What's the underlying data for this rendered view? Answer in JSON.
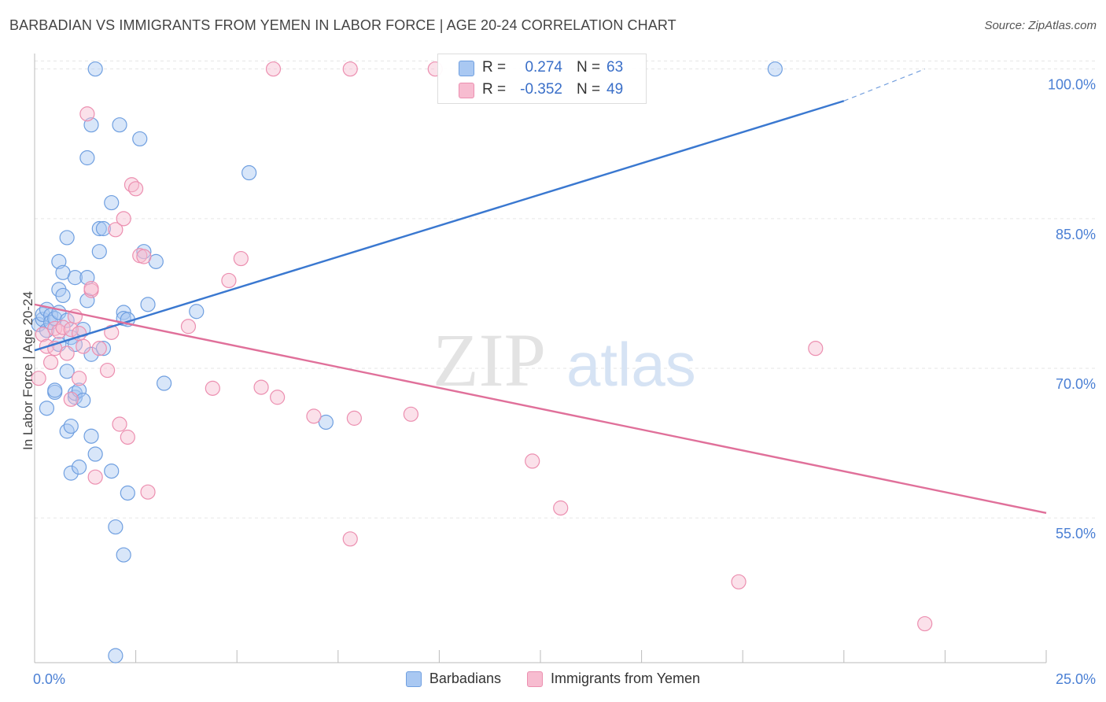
{
  "header": {
    "title": "BARBADIAN VS IMMIGRANTS FROM YEMEN IN LABOR FORCE | AGE 20-24 CORRELATION CHART",
    "source": "Source: ZipAtlas.com"
  },
  "watermark": {
    "zip": "ZIP",
    "atlas": "atlas"
  },
  "stats": [
    {
      "r_label": "R =",
      "r_value": "0.274",
      "n_label": "N =",
      "n_value": "63",
      "color": "#a9c8f2",
      "border": "#6f9fe0"
    },
    {
      "r_label": "R =",
      "r_value": "-0.352",
      "n_label": "N =",
      "n_value": "49",
      "color": "#f7bcd0",
      "border": "#ec8fb0"
    }
  ],
  "legend": [
    {
      "label": "Barbadians",
      "color": "#a9c8f2",
      "border": "#6f9fe0"
    },
    {
      "label": "Immigrants from Yemen",
      "color": "#f7bcd0",
      "border": "#ec8fb0"
    }
  ],
  "chart_data": {
    "type": "scatter",
    "title": "BARBADIAN VS IMMIGRANTS FROM YEMEN IN LABOR FORCE | AGE 20-24 CORRELATION CHART",
    "xlabel": "",
    "ylabel": "In Labor Force | Age 20-24",
    "xlim": [
      0,
      25
    ],
    "ylim": [
      40.5,
      101
    ],
    "x_tick_labels": [
      "0.0%",
      "25.0%"
    ],
    "y_ticks": [
      55,
      70,
      85,
      100
    ],
    "y_tick_labels": [
      "55.0%",
      "70.0%",
      "85.0%",
      "100.0%"
    ],
    "grid": true,
    "legend_position": "bottom",
    "series": [
      {
        "name": "Barbadians",
        "color": "#6f9fe0",
        "fill": "#a9c8f2",
        "line_color": "#3a78d0",
        "trend": {
          "x0": 0.0,
          "y0": 71.8,
          "x1": 20.0,
          "y1": 96.8,
          "dashed_to_x": 22.0,
          "dashed_to_y": 100.0
        },
        "points": [
          [
            0.1,
            74.4
          ],
          [
            0.2,
            74.9
          ],
          [
            0.2,
            75.4
          ],
          [
            0.3,
            73.8
          ],
          [
            0.3,
            75.9
          ],
          [
            0.3,
            66.0
          ],
          [
            0.4,
            75.3
          ],
          [
            0.4,
            74.6
          ],
          [
            0.5,
            75.0
          ],
          [
            0.5,
            67.6
          ],
          [
            0.5,
            67.8
          ],
          [
            0.6,
            72.4
          ],
          [
            0.6,
            75.6
          ],
          [
            0.6,
            77.9
          ],
          [
            0.6,
            80.7
          ],
          [
            0.7,
            77.3
          ],
          [
            0.7,
            79.6
          ],
          [
            0.8,
            69.7
          ],
          [
            0.8,
            63.7
          ],
          [
            0.8,
            83.1
          ],
          [
            0.9,
            64.2
          ],
          [
            0.9,
            73.1
          ],
          [
            0.9,
            59.5
          ],
          [
            1.0,
            79.1
          ],
          [
            1.0,
            67.1
          ],
          [
            1.0,
            67.5
          ],
          [
            1.1,
            60.1
          ],
          [
            1.1,
            67.8
          ],
          [
            1.2,
            66.8
          ],
          [
            1.3,
            76.8
          ],
          [
            1.3,
            91.1
          ],
          [
            1.3,
            79.1
          ],
          [
            1.4,
            63.2
          ],
          [
            1.4,
            71.4
          ],
          [
            1.4,
            94.4
          ],
          [
            1.5,
            100.0
          ],
          [
            1.5,
            61.4
          ],
          [
            1.6,
            81.7
          ],
          [
            1.6,
            84.0
          ],
          [
            1.7,
            84.0
          ],
          [
            1.7,
            72.0
          ],
          [
            1.9,
            59.7
          ],
          [
            1.9,
            86.6
          ],
          [
            2.0,
            54.1
          ],
          [
            2.0,
            41.2
          ],
          [
            2.1,
            94.4
          ],
          [
            2.2,
            75.6
          ],
          [
            2.2,
            75.0
          ],
          [
            2.2,
            51.3
          ],
          [
            2.3,
            57.5
          ],
          [
            2.6,
            93.0
          ],
          [
            2.7,
            81.7
          ],
          [
            2.8,
            76.4
          ],
          [
            3.0,
            80.7
          ],
          [
            3.2,
            68.5
          ],
          [
            4.0,
            75.7
          ],
          [
            5.3,
            89.6
          ],
          [
            7.2,
            64.6
          ],
          [
            18.3,
            100.0
          ],
          [
            1.0,
            72.4
          ],
          [
            0.8,
            74.8
          ],
          [
            1.2,
            73.9
          ],
          [
            2.3,
            74.9
          ]
        ]
      },
      {
        "name": "Immigrants from Yemen",
        "color": "#ec8fb0",
        "fill": "#f7bcd0",
        "line_color": "#e0709a",
        "trend": {
          "x0": 0.0,
          "y0": 76.4,
          "x1": 25.0,
          "y1": 55.5
        },
        "points": [
          [
            0.1,
            69.0
          ],
          [
            0.2,
            73.4
          ],
          [
            0.3,
            72.2
          ],
          [
            0.4,
            70.6
          ],
          [
            0.5,
            74.0
          ],
          [
            0.5,
            72.0
          ],
          [
            0.6,
            73.7
          ],
          [
            0.7,
            74.1
          ],
          [
            0.8,
            71.5
          ],
          [
            0.9,
            73.9
          ],
          [
            0.9,
            66.9
          ],
          [
            1.0,
            75.2
          ],
          [
            1.1,
            69.0
          ],
          [
            1.2,
            72.2
          ],
          [
            1.3,
            95.5
          ],
          [
            1.4,
            77.8
          ],
          [
            1.4,
            78.0
          ],
          [
            1.5,
            59.1
          ],
          [
            1.6,
            72.0
          ],
          [
            1.8,
            69.8
          ],
          [
            1.9,
            73.6
          ],
          [
            2.0,
            83.9
          ],
          [
            2.1,
            64.4
          ],
          [
            2.2,
            85.0
          ],
          [
            2.3,
            63.1
          ],
          [
            2.4,
            88.4
          ],
          [
            2.5,
            88.0
          ],
          [
            2.6,
            81.3
          ],
          [
            2.7,
            81.2
          ],
          [
            2.8,
            57.6
          ],
          [
            3.8,
            74.2
          ],
          [
            4.4,
            68.0
          ],
          [
            4.8,
            78.8
          ],
          [
            5.1,
            81.0
          ],
          [
            5.6,
            68.1
          ],
          [
            5.9,
            100.0
          ],
          [
            6.0,
            67.1
          ],
          [
            6.9,
            65.2
          ],
          [
            7.8,
            100.0
          ],
          [
            7.8,
            52.9
          ],
          [
            7.9,
            65.0
          ],
          [
            9.3,
            65.4
          ],
          [
            9.9,
            100.0
          ],
          [
            12.3,
            60.7
          ],
          [
            13.0,
            56.0
          ],
          [
            17.4,
            48.6
          ],
          [
            19.3,
            72.0
          ],
          [
            22.0,
            44.4
          ],
          [
            1.1,
            73.5
          ]
        ]
      }
    ]
  }
}
